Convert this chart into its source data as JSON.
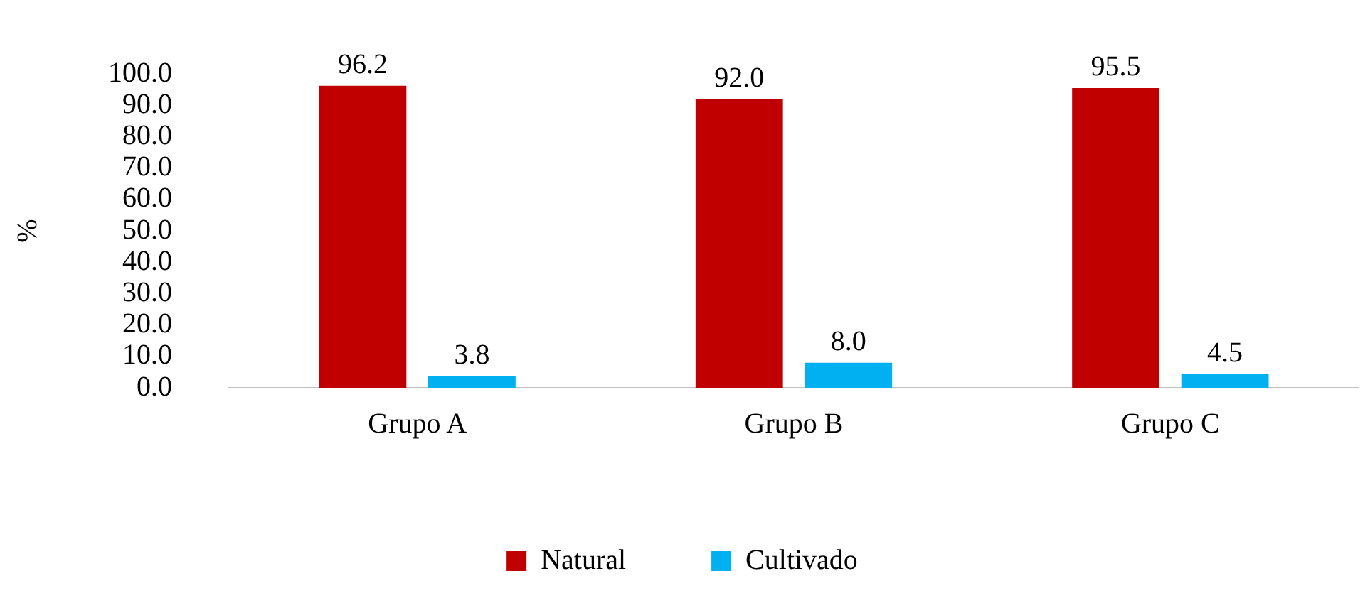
{
  "chart_data": {
    "type": "bar",
    "ylabel": "%",
    "categories": [
      "Grupo A",
      "Grupo B",
      "Grupo C"
    ],
    "series": [
      {
        "name": "Natural",
        "color": "#c00000",
        "values": [
          96.2,
          92.0,
          95.5
        ],
        "value_labels": [
          "96.2",
          "92.0",
          "95.5"
        ]
      },
      {
        "name": "Cultivado",
        "color": "#00b0f0",
        "values": [
          3.8,
          8.0,
          4.5
        ],
        "value_labels": [
          "3.8",
          "8.0",
          "4.5"
        ]
      }
    ],
    "ylim": [
      0,
      100
    ],
    "yticks": [
      {
        "value": 0,
        "label": "0.0"
      },
      {
        "value": 10,
        "label": "10.0"
      },
      {
        "value": 20,
        "label": "20.0"
      },
      {
        "value": 30,
        "label": "30.0"
      },
      {
        "value": 40,
        "label": "40.0"
      },
      {
        "value": 50,
        "label": "50.0"
      },
      {
        "value": 60,
        "label": "60.0"
      },
      {
        "value": 70,
        "label": "70.0"
      },
      {
        "value": 80,
        "label": "80.0"
      },
      {
        "value": 90,
        "label": "90.0"
      },
      {
        "value": 100,
        "label": "100.0"
      }
    ],
    "grid": false,
    "legend": "bottom"
  }
}
